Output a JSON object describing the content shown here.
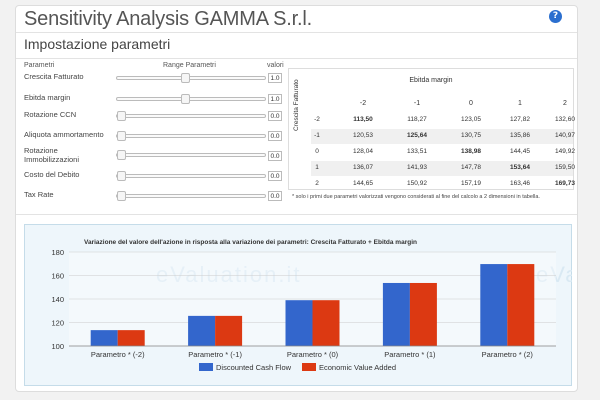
{
  "app_title": "Sensitivity Analysis GAMMA S.r.l.",
  "help_icon": "?",
  "section_title": "Impostazione parametri",
  "columns": {
    "params": "Parametri",
    "range": "Range Parametri",
    "values": "valori"
  },
  "parameters": [
    {
      "label": "Crescita Fatturato",
      "value": "1.0",
      "level": 0.46
    },
    {
      "label": "Ebitda margin",
      "value": "1.0",
      "level": 0.46
    },
    {
      "label": "Rotazione CCN",
      "value": "0.0",
      "level": 0
    },
    {
      "label": "Aliquota ammortamento",
      "value": "0.0",
      "level": 0
    },
    {
      "label": "Rotazione Immobilizzazioni",
      "value": "0.0",
      "level": 0
    },
    {
      "label": "Costo del Debito",
      "value": "0.0",
      "level": 0
    },
    {
      "label": "Tax Rate",
      "value": "0.0",
      "level": 0
    }
  ],
  "table": {
    "col_title": "Ebitda margin",
    "row_title": "Crescita Fatturato",
    "col_headers": [
      "-2",
      "-1",
      "0",
      "1",
      "2"
    ],
    "rows": [
      {
        "label": "-2",
        "cells": [
          "113,50",
          "118,27",
          "123,05",
          "127,82",
          "132,60"
        ],
        "bold": 0
      },
      {
        "label": "-1",
        "cells": [
          "120,53",
          "125,64",
          "130,75",
          "135,86",
          "140,97"
        ],
        "bold": 1
      },
      {
        "label": "0",
        "cells": [
          "128,04",
          "133,51",
          "138,98",
          "144,45",
          "149,92"
        ],
        "bold": 2
      },
      {
        "label": "1",
        "cells": [
          "136,07",
          "141,93",
          "147,78",
          "153,64",
          "159,50"
        ],
        "bold": 3
      },
      {
        "label": "2",
        "cells": [
          "144,65",
          "150,92",
          "157,19",
          "163,46",
          "169,73"
        ],
        "bold": 4
      }
    ],
    "note": "* solo i primi due parametri valorizzati vengono considerati al fine del calcolo a 2 dimensioni in tabella."
  },
  "chart_data": {
    "type": "bar",
    "title": "Variazione del valore dell'azione in risposta alla variazione dei parametri: Crescita Fatturato + Ebitda margin",
    "categories": [
      "Parametro * (-2)",
      "Parametro * (-1)",
      "Parametro * (0)",
      "Parametro * (1)",
      "Parametro * (2)"
    ],
    "series": [
      {
        "name": "Discounted Cash Flow",
        "color": "#3366cc",
        "values": [
          113.5,
          125.64,
          138.98,
          153.64,
          169.73
        ]
      },
      {
        "name": "Economic Value Added",
        "color": "#dc3912",
        "values": [
          113.5,
          125.64,
          138.98,
          153.64,
          169.73
        ]
      }
    ],
    "ylim": [
      100,
      180
    ],
    "yticks": [
      100,
      120,
      140,
      160,
      180
    ],
    "grid": true,
    "legend": "bottom"
  },
  "watermark": "eValuation.it"
}
